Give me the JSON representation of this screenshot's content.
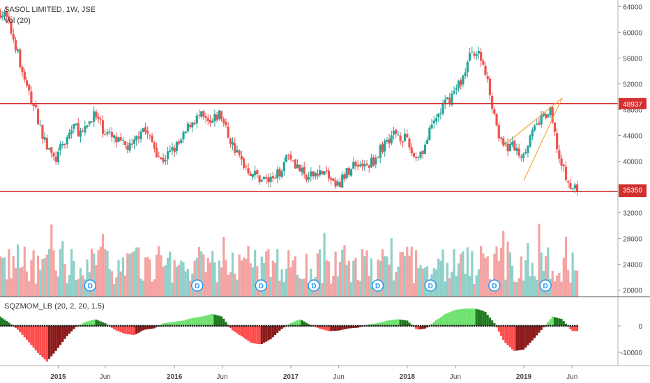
{
  "header": {
    "symbol": "SASOL LIMITED, 1W, JSE",
    "volume_label": "Vol (20)",
    "indicator_label": "SQZMOM_LB (20, 2, 20, 1.5)"
  },
  "colors": {
    "up": "#26a69a",
    "down": "#ef5350",
    "vol_up": "#8fd0c9",
    "vol_down": "#f4a3a2",
    "hline": "#d32f2f",
    "trend": "#f6a53a",
    "mom_light_green": "#6ee26e",
    "mom_dark_green": "#1f7a1f",
    "mom_light_red": "#ff4d4d",
    "mom_dark_red": "#8b1a1a",
    "dividend": "#2196f3"
  },
  "chart_data": [
    {
      "type": "candlestick",
      "title": "SASOL LIMITED, 1W, JSE",
      "ylim": [
        19000,
        65000
      ],
      "y_ticks": [
        20000,
        24000,
        28000,
        32000,
        36000,
        40000,
        44000,
        48000,
        52000,
        56000,
        60000,
        64000
      ],
      "x_labels": [
        "2015",
        "Jun",
        "2016",
        "Jun",
        "2017",
        "Jun",
        "2018",
        "Jun",
        "2019",
        "Jun"
      ],
      "price_path": [
        [
          "2014-07-01",
          63500
        ],
        [
          "2014-08-01",
          62500
        ],
        [
          "2014-09-01",
          58000
        ],
        [
          "2014-10-01",
          52000
        ],
        [
          "2014-11-01",
          48000
        ],
        [
          "2014-12-01",
          43000
        ],
        [
          "2015-01-01",
          40000
        ],
        [
          "2015-02-01",
          43000
        ],
        [
          "2015-03-01",
          45500
        ],
        [
          "2015-04-01",
          44000
        ],
        [
          "2015-05-01",
          47500
        ],
        [
          "2015-06-01",
          45000
        ],
        [
          "2015-07-01",
          43500
        ],
        [
          "2015-08-01",
          42500
        ],
        [
          "2015-09-01",
          42000
        ],
        [
          "2015-10-01",
          45500
        ],
        [
          "2015-11-01",
          43000
        ],
        [
          "2015-12-01",
          40000
        ],
        [
          "2016-01-01",
          41500
        ],
        [
          "2016-02-01",
          43000
        ],
        [
          "2016-03-01",
          46000
        ],
        [
          "2016-04-01",
          47000
        ],
        [
          "2016-05-01",
          45500
        ],
        [
          "2016-06-01",
          47500
        ],
        [
          "2016-07-01",
          43500
        ],
        [
          "2016-08-01",
          40500
        ],
        [
          "2016-09-01",
          38500
        ],
        [
          "2016-10-01",
          37500
        ],
        [
          "2016-11-01",
          37000
        ],
        [
          "2016-12-01",
          38000
        ],
        [
          "2017-01-01",
          41500
        ],
        [
          "2017-02-01",
          39000
        ],
        [
          "2017-03-01",
          37000
        ],
        [
          "2017-04-01",
          38500
        ],
        [
          "2017-05-01",
          38000
        ],
        [
          "2017-06-01",
          36000
        ],
        [
          "2017-07-01",
          38000
        ],
        [
          "2017-08-01",
          40000
        ],
        [
          "2017-09-01",
          39000
        ],
        [
          "2017-10-01",
          40500
        ],
        [
          "2017-11-01",
          43000
        ],
        [
          "2017-12-01",
          44500
        ],
        [
          "2018-01-01",
          43500
        ],
        [
          "2018-02-01",
          40500
        ],
        [
          "2018-03-01",
          42000
        ],
        [
          "2018-04-01",
          46000
        ],
        [
          "2018-05-01",
          48500
        ],
        [
          "2018-06-01",
          50500
        ],
        [
          "2018-07-01",
          53000
        ],
        [
          "2018-08-01",
          57500
        ],
        [
          "2018-09-01",
          55500
        ],
        [
          "2018-10-01",
          49000
        ],
        [
          "2018-11-01",
          42000
        ],
        [
          "2018-12-01",
          42500
        ],
        [
          "2019-01-01",
          41000
        ],
        [
          "2019-02-01",
          44000
        ],
        [
          "2019-03-01",
          46500
        ],
        [
          "2019-04-01",
          47500
        ],
        [
          "2019-05-01",
          40000
        ],
        [
          "2019-06-01",
          35800
        ]
      ],
      "horizontal_levels": [
        {
          "value": 48937,
          "label": "48937"
        },
        {
          "value": 35300,
          "label": "35300"
        }
      ],
      "last_price_label": "35350",
      "dividend_marker": "D",
      "dividend_dates": [
        "2015-04-15",
        "2016-03-15",
        "2016-10-01",
        "2017-03-15",
        "2017-10-01",
        "2018-03-15",
        "2018-10-01",
        "2019-03-10"
      ]
    },
    {
      "type": "bar",
      "title": "Vol (20)",
      "description": "Weekly volume histogram overlaid on price pane, coloured by candle direction"
    },
    {
      "type": "bar",
      "title": "SQZMOM_LB (20, 2, 20, 1.5)",
      "ylim": [
        -15000,
        11000
      ],
      "y_ticks": [
        0,
        -10000
      ],
      "momentum_path": [
        [
          "2014-07-01",
          4000
        ],
        [
          "2014-08-01",
          1500
        ],
        [
          "2014-09-01",
          -1500
        ],
        [
          "2014-10-01",
          -5500
        ],
        [
          "2014-11-01",
          -10000
        ],
        [
          "2014-12-01",
          -13500
        ],
        [
          "2015-01-01",
          -9000
        ],
        [
          "2015-02-01",
          -4000
        ],
        [
          "2015-03-01",
          -500
        ],
        [
          "2015-04-01",
          1500
        ],
        [
          "2015-05-01",
          2500
        ],
        [
          "2015-06-01",
          1000
        ],
        [
          "2015-07-01",
          -1500
        ],
        [
          "2015-08-01",
          -3000
        ],
        [
          "2015-09-01",
          -3500
        ],
        [
          "2015-10-01",
          -1500
        ],
        [
          "2015-11-01",
          -1000
        ],
        [
          "2015-12-01",
          1000
        ],
        [
          "2016-01-01",
          1500
        ],
        [
          "2016-02-01",
          2000
        ],
        [
          "2016-03-01",
          3000
        ],
        [
          "2016-04-01",
          3500
        ],
        [
          "2016-05-01",
          4500
        ],
        [
          "2016-06-01",
          3500
        ],
        [
          "2016-07-01",
          -1500
        ],
        [
          "2016-08-01",
          -4000
        ],
        [
          "2016-09-01",
          -6500
        ],
        [
          "2016-10-01",
          -7000
        ],
        [
          "2016-11-01",
          -5000
        ],
        [
          "2016-12-01",
          -1500
        ],
        [
          "2017-01-01",
          1000
        ],
        [
          "2017-02-01",
          2500
        ],
        [
          "2017-03-01",
          500
        ],
        [
          "2017-04-01",
          -1000
        ],
        [
          "2017-05-01",
          -2000
        ],
        [
          "2017-06-01",
          -1800
        ],
        [
          "2017-07-01",
          -1000
        ],
        [
          "2017-08-01",
          -700
        ],
        [
          "2017-09-01",
          500
        ],
        [
          "2017-10-01",
          1000
        ],
        [
          "2017-11-01",
          2000
        ],
        [
          "2017-12-01",
          2500
        ],
        [
          "2018-01-01",
          2000
        ],
        [
          "2018-02-01",
          -1500
        ],
        [
          "2018-03-01",
          -1000
        ],
        [
          "2018-04-01",
          2000
        ],
        [
          "2018-05-01",
          4500
        ],
        [
          "2018-06-01",
          6000
        ],
        [
          "2018-07-01",
          6500
        ],
        [
          "2018-08-01",
          6500
        ],
        [
          "2018-09-01",
          5500
        ],
        [
          "2018-10-01",
          1000
        ],
        [
          "2018-11-01",
          -6000
        ],
        [
          "2018-12-01",
          -9500
        ],
        [
          "2019-01-01",
          -9000
        ],
        [
          "2019-02-01",
          -5000
        ],
        [
          "2019-03-01",
          -1000
        ],
        [
          "2019-04-01",
          3500
        ],
        [
          "2019-05-01",
          2500
        ],
        [
          "2019-06-01",
          -2000
        ]
      ]
    }
  ]
}
